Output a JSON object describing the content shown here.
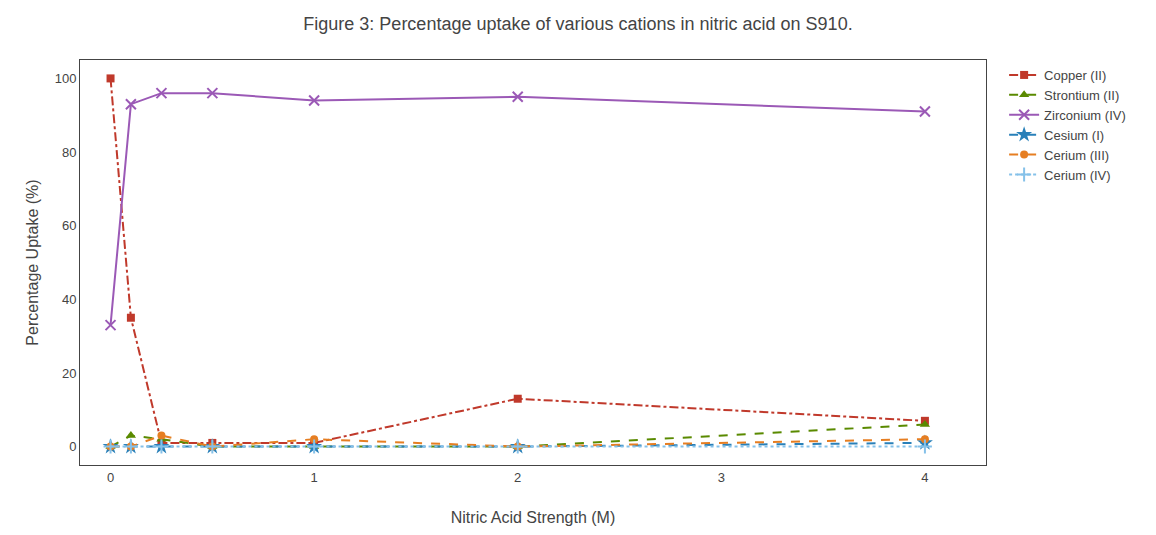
{
  "chart_data": {
    "type": "line",
    "title": "Figure 3: Percentage uptake of various cations in nitric acid on S910.",
    "xlabel": "Nitric Acid Strength (M)",
    "ylabel": "Percentage Uptake (%)",
    "x": [
      0,
      0.1,
      0.25,
      0.5,
      1.0,
      2.0,
      4.0
    ],
    "series": [
      {
        "name": "Copper (II)",
        "color": "#c0392b",
        "line_style": "dashdot",
        "marker": "square",
        "values": [
          100,
          35,
          1,
          1,
          1,
          13,
          7
        ]
      },
      {
        "name": "Strontium (II)",
        "color": "#5a8a00",
        "line_style": "dash",
        "marker": "triangle-up",
        "values": [
          0,
          3,
          2,
          0,
          0,
          0,
          6
        ]
      },
      {
        "name": "Zirconium (IV)",
        "color": "#9b59b6",
        "line_style": "solid",
        "marker": "x",
        "values": [
          33,
          93,
          96,
          96,
          94,
          95,
          91
        ]
      },
      {
        "name": "Cesium (I)",
        "color": "#2980b9",
        "line_style": "dash",
        "marker": "star",
        "values": [
          0,
          0,
          0,
          0,
          0,
          0,
          1
        ]
      },
      {
        "name": "Cerium (III)",
        "color": "#e67e22",
        "line_style": "dash",
        "marker": "circle",
        "values": [
          0,
          0,
          3,
          0,
          2,
          0,
          2
        ]
      },
      {
        "name": "Cerium (IV)",
        "color": "#85c1e9",
        "line_style": "dot",
        "marker": "plus",
        "values": [
          0,
          0,
          0,
          0,
          0,
          0,
          0
        ]
      }
    ],
    "xlim": [
      -0.15,
      4.3
    ],
    "xticks": [
      0,
      1,
      2,
      3,
      4
    ],
    "ylim": [
      -5,
      105
    ],
    "yticks": [
      0,
      20,
      40,
      60,
      80,
      100
    ],
    "grid": false,
    "legend": "upper right"
  }
}
